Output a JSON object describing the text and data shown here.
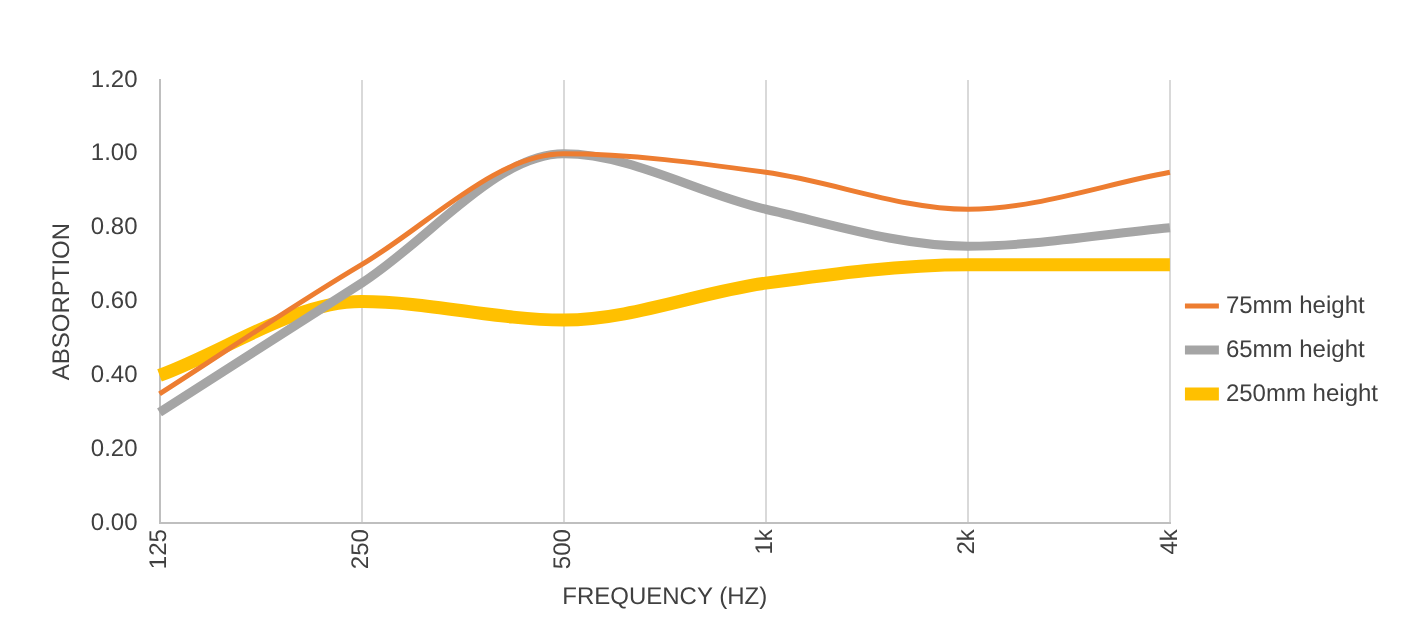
{
  "chart_data": {
    "type": "line",
    "xlabel": "FREQUENCY (HZ)",
    "ylabel": "ABSORPTION",
    "categories": [
      "125",
      "250",
      "500",
      "1k",
      "2k",
      "4k"
    ],
    "series": [
      {
        "name": "75mm height",
        "color": "#ed7d31",
        "values": [
          0.35,
          0.7,
          1.0,
          0.95,
          0.85,
          0.95
        ]
      },
      {
        "name": "65mm height",
        "color": "#a5a5a5",
        "values": [
          0.3,
          0.65,
          1.0,
          0.85,
          0.75,
          0.8
        ]
      },
      {
        "name": "250mm height",
        "color": "#ffc000",
        "values": [
          0.4,
          0.6,
          0.55,
          0.65,
          0.7,
          0.7
        ]
      }
    ],
    "ylim": [
      0,
      1.2
    ],
    "yticks": [
      {
        "value": 0,
        "label": "0.00"
      },
      {
        "value": 0.2,
        "label": "0.20"
      },
      {
        "value": 0.4,
        "label": "0.40"
      },
      {
        "value": 0.6,
        "label": "0.60"
      },
      {
        "value": 0.8,
        "label": "0.80"
      },
      {
        "value": 1.0,
        "label": "1.00"
      },
      {
        "value": 1.2,
        "label": "1.20"
      }
    ],
    "grid": "x",
    "legend": "right",
    "marker": "none",
    "line_style": "solid"
  }
}
